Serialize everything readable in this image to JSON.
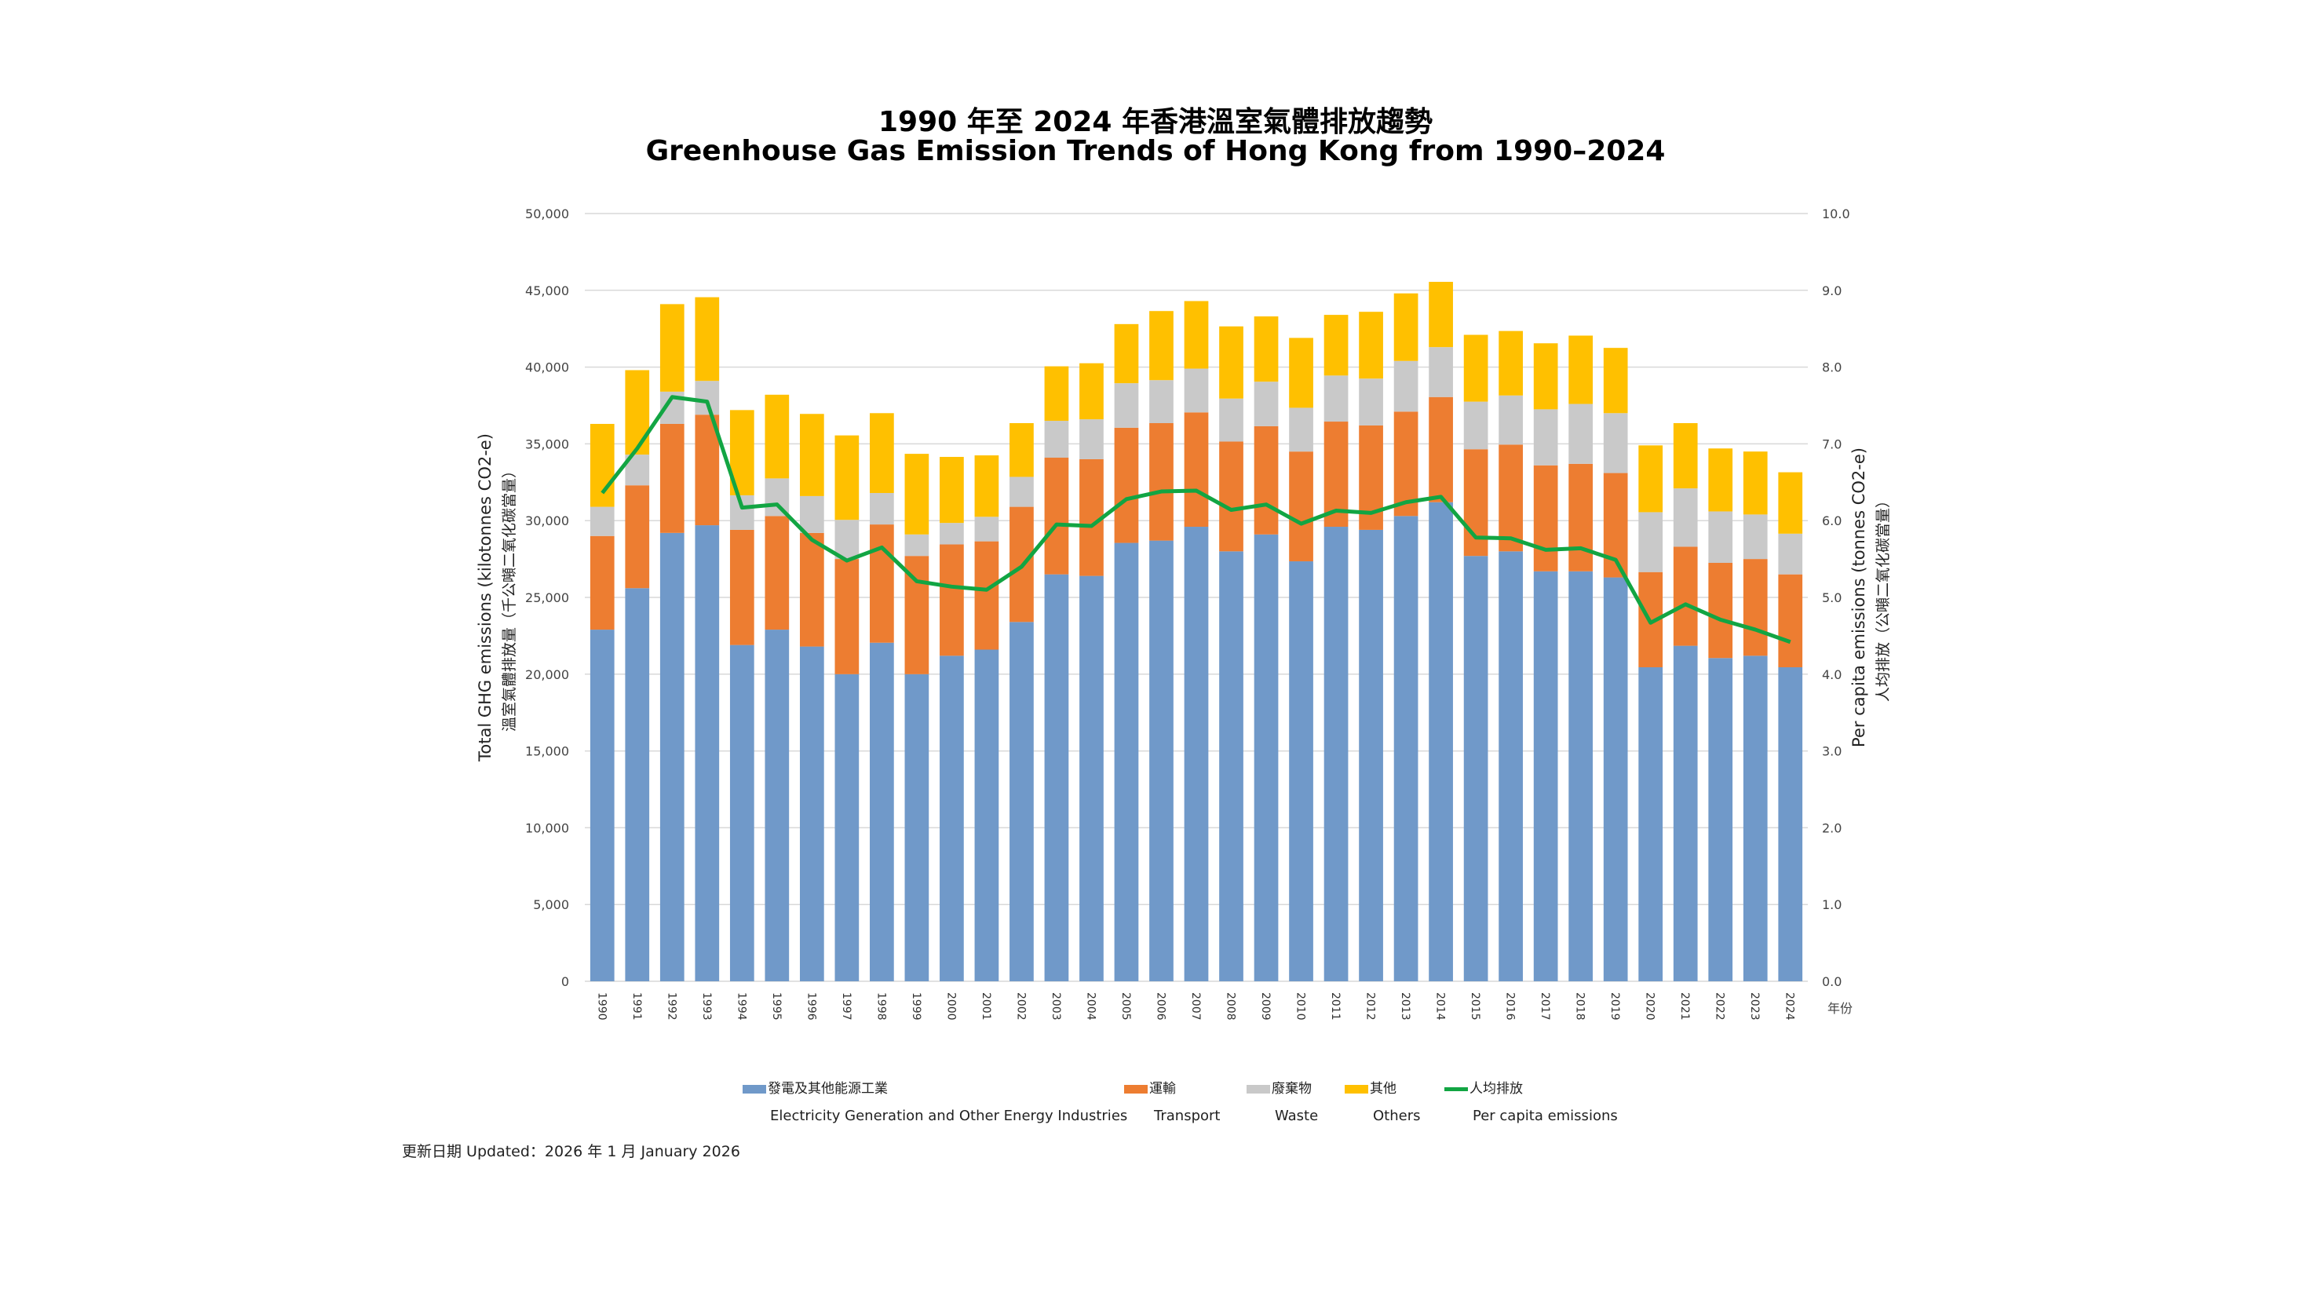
{
  "chart_data": {
    "type": "bar",
    "stacked": true,
    "title": "1990 年至 2024 年香港溫室氣體排放趨勢",
    "subtitle": "Greenhouse Gas Emission Trends of Hong Kong from 1990–2024",
    "ylabel": "Total GHG emissions (kilotonnes CO2-e)",
    "ylabel_zh": "溫室氣體排放量（千公噸二氧化碳當量）",
    "y2label": "Per capita emissions  (tonnes CO2-e)",
    "y2label_zh": "人均排放（公噸二氧化碳當量）",
    "xlabel": "年份",
    "ylim": [
      0,
      50000
    ],
    "y2lim": [
      0,
      10
    ],
    "yticks": [
      "0",
      "5,000",
      "10,000",
      "15,000",
      "20,000",
      "25,000",
      "30,000",
      "35,000",
      "40,000",
      "45,000",
      "50,000"
    ],
    "y2ticks": [
      "0.0",
      "1.0",
      "2.0",
      "3.0",
      "4.0",
      "5.0",
      "6.0",
      "7.0",
      "8.0",
      "9.0",
      "10.0"
    ],
    "grid": true,
    "legend_position": "bottom",
    "categories": [
      "1990",
      "1991",
      "1992",
      "1993",
      "1994",
      "1995",
      "1996",
      "1997",
      "1998",
      "1999",
      "2000",
      "2001",
      "2002",
      "2003",
      "2004",
      "2005",
      "2006",
      "2007",
      "2008",
      "2009",
      "2010",
      "2011",
      "2012",
      "2013",
      "2014",
      "2015",
      "2016",
      "2017",
      "2018",
      "2019",
      "2020",
      "2021",
      "2022",
      "2023",
      "2024"
    ],
    "series": [
      {
        "name": "發電及其他能源工業",
        "name_en": "Electricity Generation and Other Energy Industries",
        "color": "#7099C9",
        "type": "bar",
        "values": [
          22900,
          25600,
          29200,
          29700,
          21900,
          22900,
          21800,
          20000,
          22050,
          20000,
          21200,
          21600,
          23400,
          26500,
          26400,
          28550,
          28700,
          29600,
          28000,
          29100,
          27350,
          29600,
          29400,
          30300,
          31200,
          27700,
          28000,
          26700,
          26700,
          26300,
          20450,
          21850,
          21050,
          21200,
          20450
        ]
      },
      {
        "name": "運輸",
        "name_en": "Transport",
        "color": "#ED7D31",
        "type": "bar",
        "values": [
          6100,
          6700,
          7100,
          7200,
          7500,
          7400,
          7400,
          7500,
          7700,
          7700,
          7250,
          7050,
          7500,
          7600,
          7600,
          7500,
          7650,
          7450,
          7150,
          7050,
          7150,
          6850,
          6800,
          6800,
          6850,
          6950,
          6950,
          6900,
          7000,
          6800,
          6200,
          6450,
          6200,
          6300,
          6050
        ]
      },
      {
        "name": "廢棄物",
        "name_en": "Waste",
        "color": "#C9C9C9",
        "type": "bar",
        "values": [
          1900,
          2000,
          2100,
          2200,
          2250,
          2450,
          2400,
          2550,
          2050,
          1400,
          1400,
          1600,
          1950,
          2400,
          2600,
          2900,
          2800,
          2850,
          2800,
          2900,
          2850,
          3000,
          3050,
          3300,
          3250,
          3100,
          3200,
          3650,
          3900,
          3900,
          3900,
          3800,
          3350,
          2900,
          2650
        ]
      },
      {
        "name": "其他",
        "name_en": "Others",
        "color": "#FFC000",
        "type": "bar",
        "values": [
          5400,
          5500,
          5700,
          5450,
          5550,
          5450,
          5350,
          5500,
          5200,
          5250,
          4300,
          4000,
          3500,
          3550,
          3650,
          3850,
          4500,
          4400,
          4700,
          4250,
          4550,
          3950,
          4350,
          4400,
          4250,
          4350,
          4200,
          4300,
          4450,
          4250,
          4350,
          4250,
          4100,
          4100,
          4000
        ]
      },
      {
        "name": "人均排放",
        "name_en": "Per capita emissions",
        "color": "#12A543",
        "type": "line",
        "axis": "right",
        "values": [
          6.36,
          6.94,
          7.61,
          7.55,
          6.17,
          6.21,
          5.75,
          5.48,
          5.65,
          5.21,
          5.14,
          5.1,
          5.4,
          5.95,
          5.93,
          6.28,
          6.38,
          6.39,
          6.14,
          6.21,
          5.96,
          6.13,
          6.1,
          6.24,
          6.31,
          5.78,
          5.77,
          5.62,
          5.64,
          5.49,
          4.67,
          4.91,
          4.71,
          4.58,
          4.42
        ]
      }
    ]
  },
  "footer": "更新日期  Updated：2026 年 1 月  January 2026"
}
